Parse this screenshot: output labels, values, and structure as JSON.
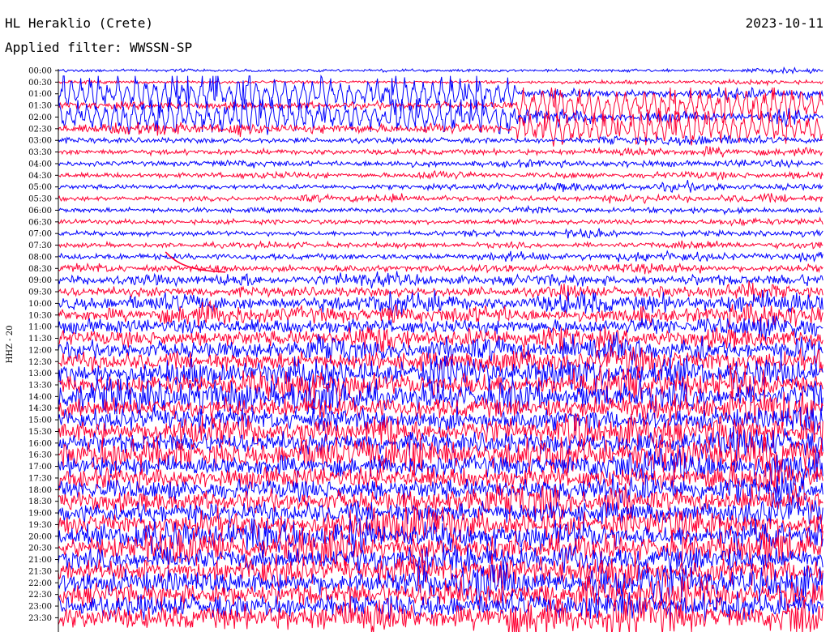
{
  "header": {
    "station": "HL Heraklio (Crete)",
    "date": "2023-10-11",
    "filter_prefix": "Applied filter: ",
    "filter_name": "WWSSN-SP"
  },
  "colors": {
    "trace_a": "#0000ff",
    "trace_b": "#ff0033",
    "axis": "#000000",
    "background": "#ffffff"
  },
  "chart_data": {
    "type": "line",
    "title": "HL Heraklio (Crete)",
    "subtitle": "Applied filter: WWSSN-SP",
    "date": "2023-10-11",
    "ylabel": "HHZ - 20",
    "xlabel": "",
    "y_tick_labels": [
      "00:00",
      "00:30",
      "01:00",
      "01:30",
      "02:00",
      "02:30",
      "03:00",
      "03:30",
      "04:00",
      "04:30",
      "05:00",
      "05:30",
      "06:00",
      "06:30",
      "07:00",
      "07:30",
      "08:00",
      "08:30",
      "09:00",
      "09:30",
      "10:00",
      "10:30",
      "11:00",
      "11:30",
      "12:00",
      "12:30",
      "13:00",
      "13:30",
      "14:00",
      "14:30",
      "15:00",
      "15:30",
      "16:00",
      "16:30",
      "17:00",
      "17:30",
      "18:00",
      "18:30",
      "19:00",
      "19:30",
      "20:00",
      "20:30",
      "21:00",
      "21:30",
      "22:00",
      "22:30",
      "23:00",
      "23:30"
    ],
    "series": [
      {
        "trace_color": "#0000ff",
        "rows": "even (00:00, 01:00, ...)"
      },
      {
        "trace_color": "#ff0033",
        "rows": "odd (00:30, 01:30, ...)"
      }
    ],
    "row_noise_amplitude": [
      0.5,
      0.5,
      1.2,
      1.2,
      1.2,
      1.2,
      0.9,
      0.9,
      0.8,
      0.8,
      0.8,
      0.8,
      0.8,
      0.8,
      0.8,
      0.8,
      1.0,
      1.0,
      1.4,
      1.6,
      2.0,
      2.2,
      2.4,
      2.6,
      2.8,
      3.0,
      3.2,
      3.4,
      3.5,
      3.5,
      3.6,
      3.6,
      3.6,
      3.6,
      3.5,
      3.5,
      3.5,
      3.5,
      3.5,
      3.5,
      3.6,
      3.6,
      3.6,
      3.6,
      3.8,
      3.8,
      3.8,
      3.8
    ],
    "events": [
      {
        "name": "large-amplitude-segment-1",
        "start": "01:00",
        "end": "02:30",
        "time_fraction_start": 0.0,
        "time_fraction_end": 0.6,
        "color": "#0000ff"
      },
      {
        "name": "large-amplitude-segment-2",
        "start": "01:00",
        "end": "02:30",
        "time_fraction_start": 0.6,
        "time_fraction_end": 1.0,
        "color": "#ff0033"
      },
      {
        "name": "baseline-step-decay",
        "start": "08:00",
        "end": "08:30",
        "time_fraction_start": 0.14,
        "time_fraction_end": 0.22,
        "color": "#ff0033"
      }
    ],
    "grid": false,
    "legend": "none"
  }
}
